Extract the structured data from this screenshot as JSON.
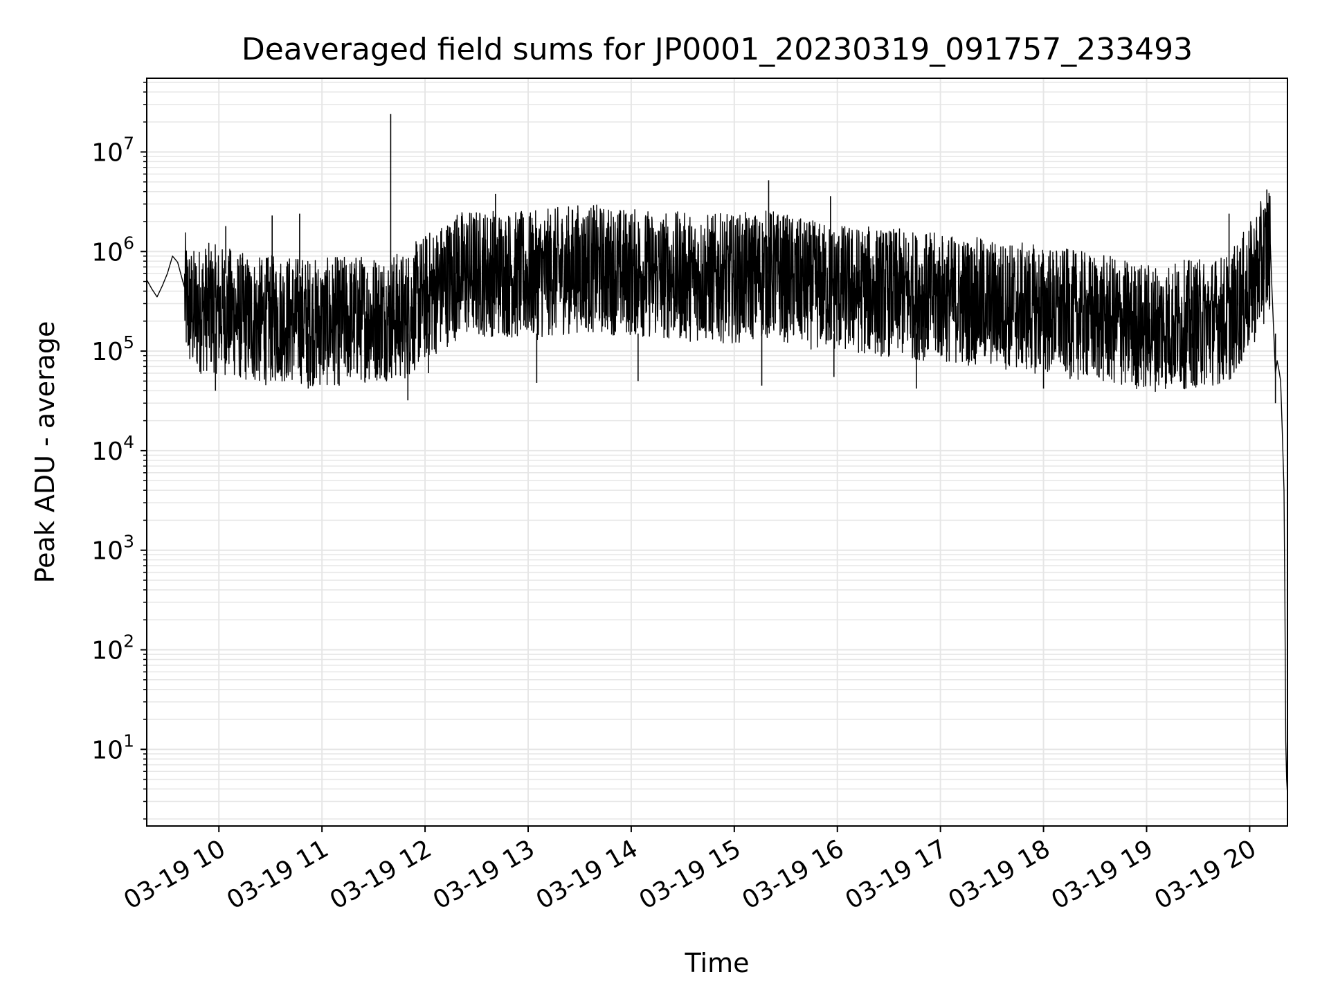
{
  "chart_data": {
    "type": "line",
    "title": "Deaveraged field sums for JP0001_20230319_091757_233493",
    "xlabel": "Time",
    "ylabel": "Peak ADU - average",
    "yscale": "log",
    "grid": true,
    "xlim": [
      "2023-03-19 09:18",
      "2023-03-19 20:22"
    ],
    "ylim": [
      1.7,
      55000000
    ],
    "x_ticks": [
      "03-19 10",
      "03-19 11",
      "03-19 12",
      "03-19 13",
      "03-19 14",
      "03-19 15",
      "03-19 16",
      "03-19 17",
      "03-19 18",
      "03-19 19",
      "03-19 20"
    ],
    "y_ticks": [
      {
        "base": "10",
        "exp": "1",
        "value": 10
      },
      {
        "base": "10",
        "exp": "2",
        "value": 100
      },
      {
        "base": "10",
        "exp": "3",
        "value": 1000
      },
      {
        "base": "10",
        "exp": "4",
        "value": 10000
      },
      {
        "base": "10",
        "exp": "5",
        "value": 100000
      },
      {
        "base": "10",
        "exp": "6",
        "value": 1000000
      },
      {
        "base": "10",
        "exp": "7",
        "value": 10000000
      }
    ],
    "series": [
      {
        "color": "#000000",
        "x": [
          "2023-03-19 09:18",
          "2023-03-19 09:21",
          "2023-03-19 09:24",
          "2023-03-19 09:27",
          "2023-03-19 09:30",
          "2023-03-19 09:33",
          "2023-03-19 09:36",
          "2023-03-19 09:39",
          "2023-03-19 09:42",
          "2023-03-19 09:45",
          "2023-03-19 09:48",
          "2023-03-19 09:54",
          "2023-03-19 10:00",
          "2023-03-19 10:06",
          "2023-03-19 10:12",
          "2023-03-19 10:24",
          "2023-03-19 10:36",
          "2023-03-19 10:48",
          "2023-03-19 11:00",
          "2023-03-19 11:12",
          "2023-03-19 11:24",
          "2023-03-19 11:38",
          "2023-03-19 11:48",
          "2023-03-19 12:00",
          "2023-03-19 12:20",
          "2023-03-19 12:42",
          "2023-03-19 13:00",
          "2023-03-19 13:30",
          "2023-03-19 14:00",
          "2023-03-19 14:30",
          "2023-03-19 15:00",
          "2023-03-19 15:22",
          "2023-03-19 15:40",
          "2023-03-19 16:00",
          "2023-03-19 16:30",
          "2023-03-19 17:00",
          "2023-03-19 17:30",
          "2023-03-19 18:00",
          "2023-03-19 18:30",
          "2023-03-19 19:00",
          "2023-03-19 19:30",
          "2023-03-19 19:48",
          "2023-03-19 20:00",
          "2023-03-19 20:06",
          "2023-03-19 20:10",
          "2023-03-19 20:12",
          "2023-03-19 20:13",
          "2023-03-19 20:15",
          "2023-03-19 20:16",
          "2023-03-19 20:17",
          "2023-03-19 20:18",
          "2023-03-19 20:19",
          "2023-03-19 20:20",
          "2023-03-19 20:20:30",
          "2023-03-19 20:21",
          "2023-03-19 20:21:30",
          "2023-03-19 20:22"
        ],
        "y": [
          520000,
          420000,
          350000,
          450000,
          600000,
          900000,
          780000,
          500000,
          330000,
          280000,
          300000,
          320000,
          300000,
          290000,
          260000,
          230000,
          250000,
          240000,
          220000,
          240000,
          250000,
          260000,
          260000,
          400000,
          700000,
          720000,
          650000,
          800000,
          720000,
          650000,
          620000,
          700000,
          550000,
          500000,
          450000,
          400000,
          350000,
          300000,
          250000,
          200000,
          220000,
          250000,
          500000,
          800000,
          1100000,
          1200000,
          400000,
          60000,
          80000,
          65000,
          50000,
          15000,
          4000,
          300,
          12,
          5,
          3.5
        ],
        "peaks_x": [
          "2023-03-19 10:04",
          "2023-03-19 10:31",
          "2023-03-19 10:47",
          "2023-03-19 11:40",
          "2023-03-19 12:18",
          "2023-03-19 12:41",
          "2023-03-19 15:20",
          "2023-03-19 15:56",
          "2023-03-19 19:48",
          "2023-03-19 20:10"
        ],
        "peaks_y": [
          1800000,
          2300000,
          2400000,
          24000000,
          2100000,
          3800000,
          5200000,
          3600000,
          2400000,
          4200000
        ],
        "troughs_x": [
          "2023-03-19 09:58",
          "2023-03-19 10:52",
          "2023-03-19 11:10",
          "2023-03-19 11:50",
          "2023-03-19 12:02",
          "2023-03-19 13:05",
          "2023-03-19 14:04",
          "2023-03-19 15:16",
          "2023-03-19 15:58",
          "2023-03-19 16:46",
          "2023-03-19 18:00",
          "2023-03-19 19:26",
          "2023-03-19 20:15"
        ],
        "troughs_y": [
          40000,
          42000,
          45000,
          32000,
          60000,
          48000,
          50000,
          45000,
          55000,
          42000,
          42000,
          48000,
          30000
        ]
      }
    ]
  }
}
